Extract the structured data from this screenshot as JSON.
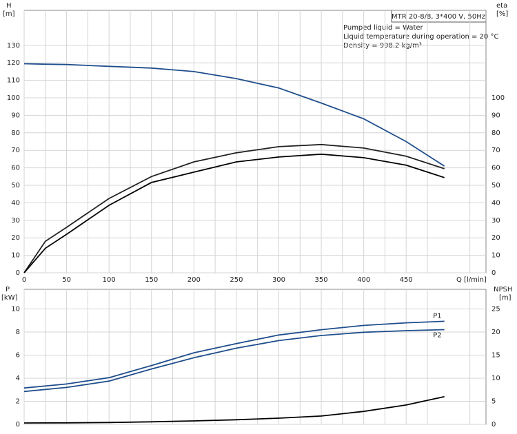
{
  "chart_data": [
    {
      "type": "line",
      "y_label": "H",
      "y_unit": "[m]",
      "y2_label": "eta",
      "y2_unit": "[%]",
      "x_label": "Q [l/min]",
      "info_box": "MTR 20-8/8, 3*400 V, 50Hz",
      "notes": [
        "Pumped liquid = Water",
        "Liquid temperature during operation = 20 °C",
        "Density = 998.2 kg/m³"
      ],
      "xlim": [
        0,
        544
      ],
      "xticks": [
        0,
        50,
        100,
        150,
        200,
        250,
        300,
        350,
        400,
        450
      ],
      "x_minor_ticks": [
        25,
        75,
        125,
        175,
        225,
        275,
        325,
        375,
        425,
        475,
        525
      ],
      "ylim": [
        0,
        150
      ],
      "yticks": [
        0,
        10,
        20,
        30,
        40,
        50,
        60,
        70,
        80,
        90,
        100,
        110,
        120,
        130
      ],
      "y2lim": [
        0,
        150
      ],
      "y2ticks": [
        0,
        10,
        20,
        30,
        40,
        50,
        60,
        70,
        80,
        90,
        100
      ],
      "grid": true,
      "x": [
        0,
        25,
        50,
        100,
        150,
        200,
        250,
        300,
        350,
        400,
        450,
        495
      ],
      "series": [
        {
          "color": "#1f4e8c",
          "values": [
            119.5,
            119.2,
            119,
            118,
            117,
            115,
            111,
            105.6,
            97,
            88,
            75,
            61
          ]
        },
        {
          "color": "#222222",
          "axis": "y2",
          "values": [
            0,
            18,
            26,
            42.5,
            55,
            63.4,
            68.6,
            72.1,
            73.3,
            71.3,
            66.6,
            59.5
          ]
        },
        {
          "color": "#000000",
          "axis": "y2",
          "values": [
            0,
            14,
            22,
            38.6,
            51.6,
            57.5,
            63.4,
            66.2,
            67.8,
            65.8,
            61.5,
            54.4
          ]
        }
      ]
    },
    {
      "type": "line",
      "y_label": "P",
      "y_unit": "[kW]",
      "y2_label": "NPSH",
      "y2_unit": "[m]",
      "xlim": [
        0,
        544
      ],
      "xticks": [
        0,
        50,
        100,
        150,
        200,
        250,
        300,
        350,
        400,
        450
      ],
      "x_minor_ticks": [
        25,
        75,
        125,
        175,
        225,
        275,
        325,
        375,
        425,
        475,
        525
      ],
      "ylim": [
        0,
        11.7
      ],
      "yticks": [
        0,
        2,
        4,
        6,
        8,
        10
      ],
      "y2lim": [
        0,
        29.25
      ],
      "y2ticks": [
        0,
        5,
        10,
        15,
        20,
        25
      ],
      "grid": true,
      "x": [
        0,
        50,
        100,
        150,
        200,
        250,
        300,
        350,
        400,
        450,
        495
      ],
      "series": [
        {
          "name": "P1",
          "color": "#1f4e8c",
          "values": [
            3.15,
            3.5,
            4.05,
            5.1,
            6.2,
            7.0,
            7.74,
            8.2,
            8.57,
            8.8,
            8.93
          ]
        },
        {
          "name": "P2",
          "color": "#1f4e8c",
          "values": [
            2.85,
            3.2,
            3.75,
            4.8,
            5.77,
            6.6,
            7.26,
            7.7,
            7.98,
            8.12,
            8.21
          ]
        },
        {
          "color": "#000000",
          "axis": "y2",
          "values": [
            0.3,
            0.33,
            0.4,
            0.55,
            0.74,
            1.0,
            1.34,
            1.8,
            2.8,
            4.2,
            6.0
          ]
        }
      ]
    }
  ]
}
